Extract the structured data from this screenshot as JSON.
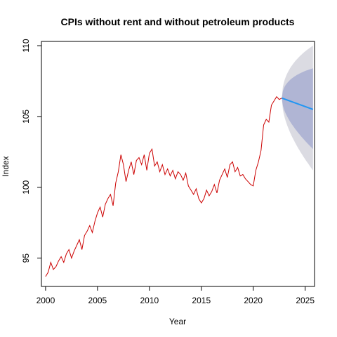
{
  "chart_data": {
    "type": "line",
    "title": "CPIs without rent and without petroleum products",
    "xlabel": "Year",
    "ylabel": "Index",
    "xlim": [
      1999.6,
      2025.9
    ],
    "ylim": [
      93.0,
      110.3
    ],
    "x_ticks": [
      2000,
      2005,
      2010,
      2015,
      2020,
      2025
    ],
    "y_ticks": [
      95,
      100,
      105,
      110
    ],
    "grid": false,
    "colors": {
      "history": "#cc0000",
      "forecast": "#2196f3",
      "band_95": "#dbdbe2",
      "band_80": "#b0b5d4"
    },
    "series": [
      {
        "role": "history",
        "x": [
          2000.0,
          2000.25,
          2000.5,
          2000.75,
          2001.0,
          2001.25,
          2001.5,
          2001.75,
          2002.0,
          2002.25,
          2002.5,
          2002.75,
          2003.0,
          2003.25,
          2003.5,
          2003.75,
          2004.0,
          2004.25,
          2004.5,
          2004.75,
          2005.0,
          2005.25,
          2005.5,
          2005.75,
          2006.0,
          2006.25,
          2006.5,
          2006.75,
          2007.0,
          2007.25,
          2007.5,
          2007.75,
          2008.0,
          2008.25,
          2008.5,
          2008.75,
          2009.0,
          2009.25,
          2009.5,
          2009.75,
          2010.0,
          2010.25,
          2010.5,
          2010.75,
          2011.0,
          2011.25,
          2011.5,
          2011.75,
          2012.0,
          2012.25,
          2012.5,
          2012.75,
          2013.0,
          2013.25,
          2013.5,
          2013.75,
          2014.0,
          2014.25,
          2014.5,
          2014.75,
          2015.0,
          2015.25,
          2015.5,
          2015.75,
          2016.0,
          2016.25,
          2016.5,
          2016.75,
          2017.0,
          2017.25,
          2017.5,
          2017.75,
          2018.0,
          2018.25,
          2018.5,
          2018.75,
          2019.0,
          2019.25,
          2019.5,
          2019.75,
          2020.0,
          2020.25,
          2020.5,
          2020.75,
          2021.0,
          2021.25,
          2021.5,
          2021.75,
          2022.0,
          2022.25,
          2022.5,
          2022.75
        ],
        "y": [
          93.7,
          94.0,
          94.7,
          94.2,
          94.4,
          94.8,
          95.1,
          94.7,
          95.3,
          95.6,
          95.0,
          95.5,
          95.9,
          96.3,
          95.6,
          96.6,
          96.9,
          97.3,
          96.8,
          97.6,
          98.2,
          98.6,
          97.9,
          98.8,
          99.2,
          99.5,
          98.7,
          100.3,
          101.1,
          102.3,
          101.6,
          100.4,
          101.2,
          101.8,
          100.9,
          101.9,
          102.1,
          101.6,
          102.3,
          101.2,
          102.4,
          102.7,
          101.5,
          101.8,
          101.1,
          101.6,
          100.9,
          101.3,
          100.8,
          101.2,
          100.6,
          101.1,
          100.9,
          100.5,
          101.0,
          100.1,
          99.8,
          99.5,
          99.9,
          99.2,
          98.9,
          99.2,
          99.8,
          99.4,
          99.7,
          100.2,
          99.6,
          100.5,
          100.9,
          101.3,
          100.7,
          101.6,
          101.8,
          101.1,
          101.4,
          100.8,
          100.9,
          100.6,
          100.4,
          100.2,
          100.1,
          101.2,
          101.8,
          102.6,
          104.4,
          104.8,
          104.6,
          105.8,
          106.1,
          106.4,
          106.2,
          106.3
        ]
      },
      {
        "role": "forecast",
        "x": [
          2022.75,
          2025.75
        ],
        "y": [
          106.3,
          105.5
        ],
        "band_80": {
          "upper": [
            106.3,
            108.4
          ],
          "lower": [
            106.3,
            102.7
          ]
        },
        "band_95": {
          "upper": [
            106.3,
            110.0
          ],
          "lower": [
            106.3,
            101.2
          ]
        }
      }
    ]
  }
}
